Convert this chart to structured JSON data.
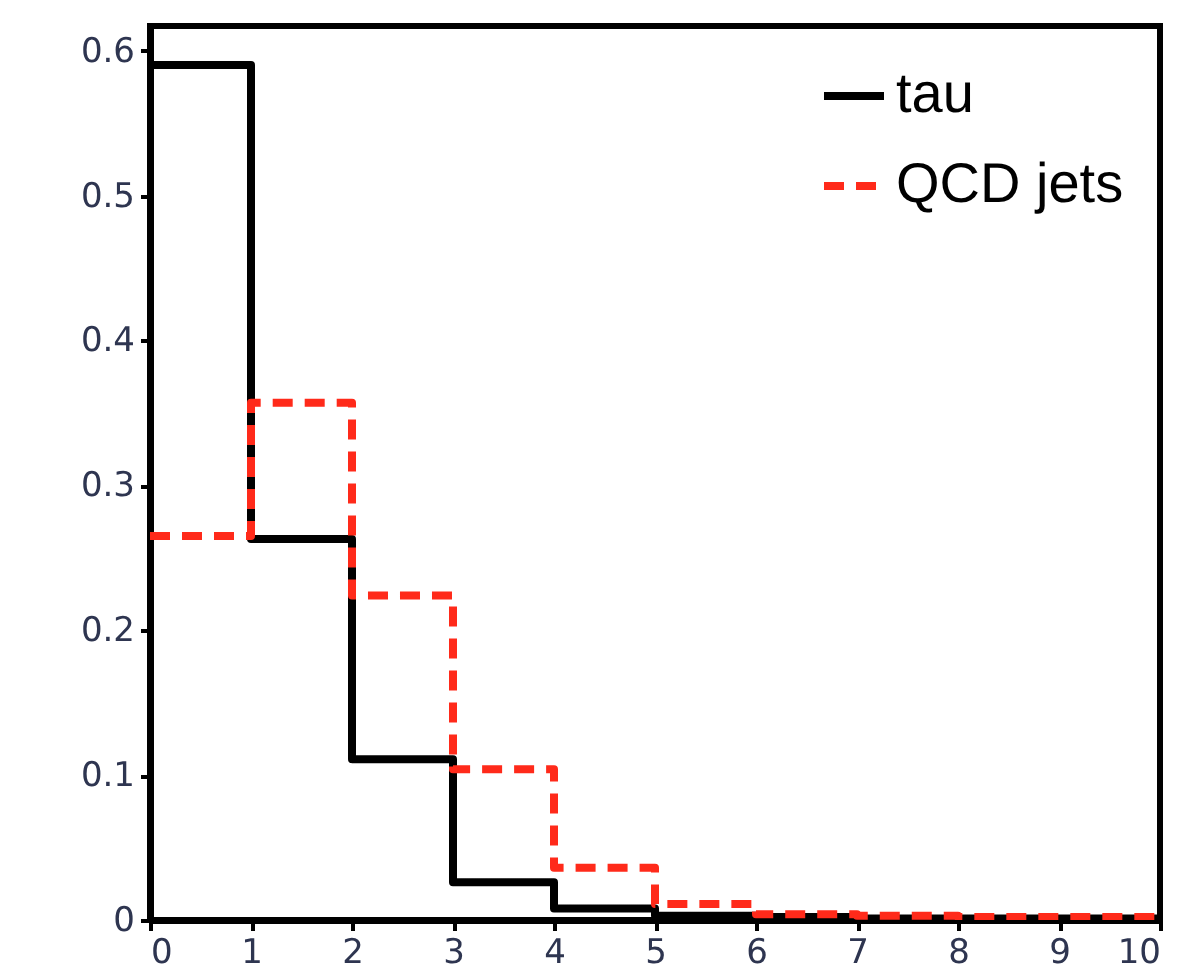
{
  "chart_data": {
    "type": "histogram",
    "bins": [
      0,
      1,
      2,
      3,
      4,
      5,
      6,
      7,
      8,
      9,
      10
    ],
    "series": [
      {
        "name": "tau",
        "color": "#000000",
        "line_style": "solid",
        "values": [
          0.59,
          0.263,
          0.111,
          0.026,
          0.008,
          0.003,
          0.002,
          0.001,
          0.001,
          0.001
        ]
      },
      {
        "name": "QCD jets",
        "color": "#ff2a1a",
        "line_style": "dashed",
        "values": [
          0.265,
          0.357,
          0.224,
          0.104,
          0.036,
          0.011,
          0.004,
          0.003,
          0.002,
          0.002
        ]
      }
    ],
    "xlim": [
      0,
      10
    ],
    "xticks": [
      0,
      1,
      2,
      3,
      4,
      5,
      6,
      7,
      8,
      9,
      10
    ],
    "ylim": [
      0,
      0.617
    ],
    "yticks": [
      0,
      0.1,
      0.2,
      0.3,
      0.4,
      0.5,
      0.6
    ],
    "grid": false,
    "legend": "top right"
  }
}
